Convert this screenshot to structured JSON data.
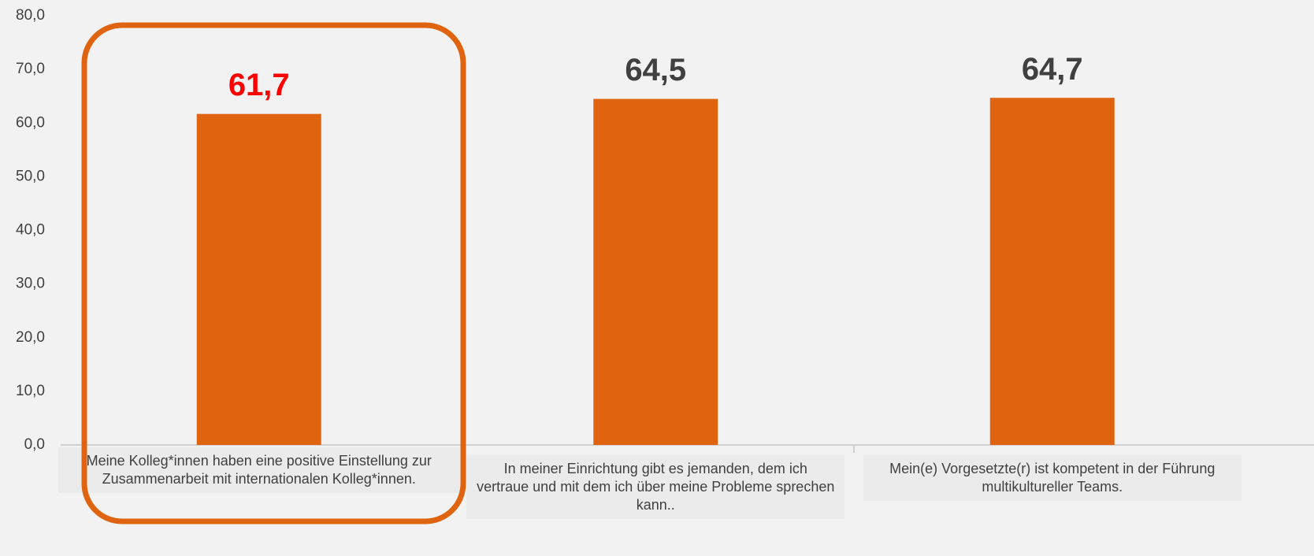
{
  "chart_data": {
    "type": "bar",
    "categories": [
      "Meine Kolleg*innen haben eine positive Einstellung zur Zusammenarbeit mit internationalen Kolleg*innen.",
      "In meiner Einrichtung gibt es jemanden, dem ich vertraue und mit dem ich über meine Probleme sprechen kann..",
      "Mein(e) Vorgesetzte(r) ist kompetent in der Führung multikultureller Teams."
    ],
    "values": [
      61.7,
      64.5,
      64.7
    ],
    "value_labels": [
      "61,7",
      "64,5",
      "64,7"
    ],
    "value_label_colors": [
      "#ff0000",
      "#404040",
      "#404040"
    ],
    "color": "#e06410",
    "ylim": [
      0,
      80
    ],
    "yticks": [
      {
        "value": 0,
        "label": "0,0"
      },
      {
        "value": 10,
        "label": "10,0"
      },
      {
        "value": 20,
        "label": "20,0"
      },
      {
        "value": 30,
        "label": "30,0"
      },
      {
        "value": 40,
        "label": "40,0"
      },
      {
        "value": 50,
        "label": "50,0"
      },
      {
        "value": 60,
        "label": "60,0"
      },
      {
        "value": 70,
        "label": "70,0"
      },
      {
        "value": 80,
        "label": "80,0"
      }
    ],
    "grid": false
  }
}
